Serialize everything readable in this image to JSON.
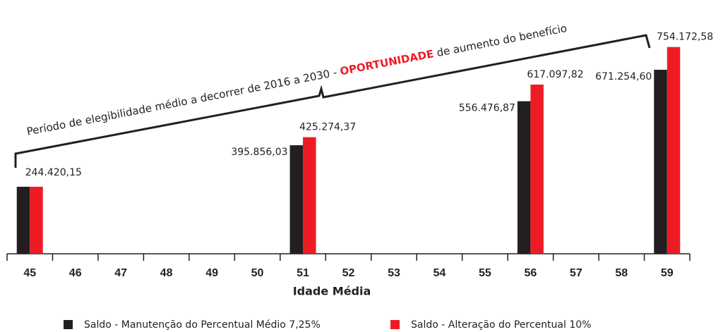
{
  "chart_data": {
    "type": "bar",
    "categories": [
      "45",
      "46",
      "47",
      "48",
      "49",
      "50",
      "51",
      "52",
      "53",
      "54",
      "55",
      "56",
      "57",
      "58",
      "59"
    ],
    "series": [
      {
        "name": "Saldo - Manutenção do Percentual Médio 7,25%",
        "color": "#231f20",
        "values": [
          244420.15,
          null,
          null,
          null,
          null,
          null,
          395856.03,
          null,
          null,
          null,
          null,
          556476.87,
          null,
          null,
          671254.6
        ],
        "value_labels": [
          "244.420,15",
          null,
          null,
          null,
          null,
          null,
          "395.856,03",
          null,
          null,
          null,
          null,
          "556.476,87",
          null,
          null,
          "671.254,60"
        ]
      },
      {
        "name": "Saldo - Alteração do Percentual 10%",
        "color": "#ed1c24",
        "values": [
          244420.15,
          null,
          null,
          null,
          null,
          null,
          425274.37,
          null,
          null,
          null,
          null,
          617097.82,
          null,
          null,
          754172.58
        ],
        "value_labels": [
          null,
          null,
          null,
          null,
          null,
          null,
          "425.274,37",
          null,
          null,
          null,
          null,
          "617.097,82",
          null,
          null,
          "754.172,58"
        ]
      }
    ],
    "xlabel": "Idade Média",
    "annotation": {
      "before": "Período de elegibilidade médio a decorrer de 2016 a 2030 - ",
      "highlight": "OPORTUNIDADE",
      "after": " de aumento do benefício"
    },
    "ylim": [
      0,
      900000
    ]
  }
}
